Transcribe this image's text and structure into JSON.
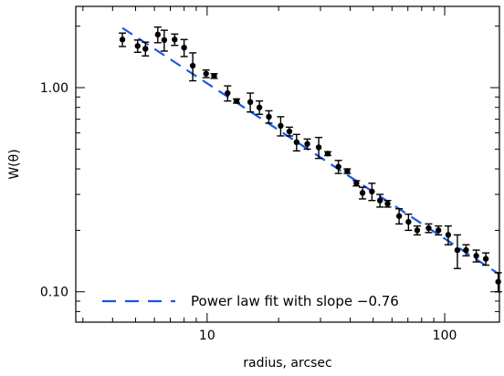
{
  "chart_data": {
    "type": "scatter",
    "xlabel": "radius, arcsec",
    "ylabel": "W(θ)",
    "xscale": "log",
    "yscale": "log",
    "xlim": [
      2.8,
      170
    ],
    "ylim": [
      0.071,
      2.5
    ],
    "x_tick_labels": [
      {
        "value": 10,
        "label": "10"
      },
      {
        "value": 100,
        "label": "100"
      }
    ],
    "y_tick_labels": [
      {
        "value": 0.1,
        "label": "0.10"
      },
      {
        "value": 1.0,
        "label": "1.00"
      }
    ],
    "legend": {
      "position": "bottom-left",
      "entries": [
        {
          "label": "Power law fit with slope −0.76",
          "style": "dashed",
          "color": "#1a56e8"
        }
      ]
    },
    "series": [
      {
        "style": "points-with-errorbars",
        "color": "#000000",
        "points": [
          {
            "x": 4.4,
            "y": 1.72,
            "err": 0.13
          },
          {
            "x": 5.1,
            "y": 1.6,
            "err": 0.11
          },
          {
            "x": 5.5,
            "y": 1.55,
            "err": 0.12
          },
          {
            "x": 6.2,
            "y": 1.82,
            "err": 0.16
          },
          {
            "x": 6.6,
            "y": 1.71,
            "err": 0.2
          },
          {
            "x": 7.3,
            "y": 1.72,
            "err": 0.11
          },
          {
            "x": 8.0,
            "y": 1.57,
            "err": 0.15
          },
          {
            "x": 8.7,
            "y": 1.28,
            "err": 0.2
          },
          {
            "x": 9.9,
            "y": 1.17,
            "err": 0.05
          },
          {
            "x": 10.7,
            "y": 1.14,
            "err": 0.03
          },
          {
            "x": 12.2,
            "y": 0.94,
            "err": 0.08
          },
          {
            "x": 13.3,
            "y": 0.86,
            "err": 0.02
          },
          {
            "x": 15.2,
            "y": 0.85,
            "err": 0.09
          },
          {
            "x": 16.6,
            "y": 0.8,
            "err": 0.06
          },
          {
            "x": 18.2,
            "y": 0.72,
            "err": 0.05
          },
          {
            "x": 20.4,
            "y": 0.65,
            "err": 0.07
          },
          {
            "x": 22.2,
            "y": 0.61,
            "err": 0.03
          },
          {
            "x": 23.8,
            "y": 0.54,
            "err": 0.05
          },
          {
            "x": 26.4,
            "y": 0.53,
            "err": 0.03
          },
          {
            "x": 29.5,
            "y": 0.51,
            "err": 0.06
          },
          {
            "x": 32.2,
            "y": 0.475,
            "err": 0.01
          },
          {
            "x": 35.7,
            "y": 0.41,
            "err": 0.03
          },
          {
            "x": 38.9,
            "y": 0.39,
            "err": 0.01
          },
          {
            "x": 42.5,
            "y": 0.34,
            "err": 0.01
          },
          {
            "x": 45.1,
            "y": 0.305,
            "err": 0.02
          },
          {
            "x": 49.4,
            "y": 0.31,
            "err": 0.03
          },
          {
            "x": 53.4,
            "y": 0.28,
            "err": 0.02
          },
          {
            "x": 57.5,
            "y": 0.27,
            "err": 0.01
          },
          {
            "x": 64.3,
            "y": 0.235,
            "err": 0.02
          },
          {
            "x": 70.4,
            "y": 0.22,
            "err": 0.02
          },
          {
            "x": 76.6,
            "y": 0.2,
            "err": 0.01
          },
          {
            "x": 85.6,
            "y": 0.205,
            "err": 0.01
          },
          {
            "x": 94.1,
            "y": 0.2,
            "err": 0.01
          },
          {
            "x": 103.5,
            "y": 0.19,
            "err": 0.02
          },
          {
            "x": 113.1,
            "y": 0.16,
            "err": 0.03
          },
          {
            "x": 123.0,
            "y": 0.16,
            "err": 0.01
          },
          {
            "x": 135.8,
            "y": 0.15,
            "err": 0.01
          },
          {
            "x": 149.0,
            "y": 0.145,
            "err": 0.01
          },
          {
            "x": 168.0,
            "y": 0.112,
            "err": 0.012
          }
        ]
      },
      {
        "style": "dashed-line",
        "color": "#1a56e8",
        "slope": -0.76,
        "points": [
          {
            "x": 4.4,
            "y": 1.96
          },
          {
            "x": 175.0,
            "y": 0.119
          }
        ]
      }
    ]
  }
}
